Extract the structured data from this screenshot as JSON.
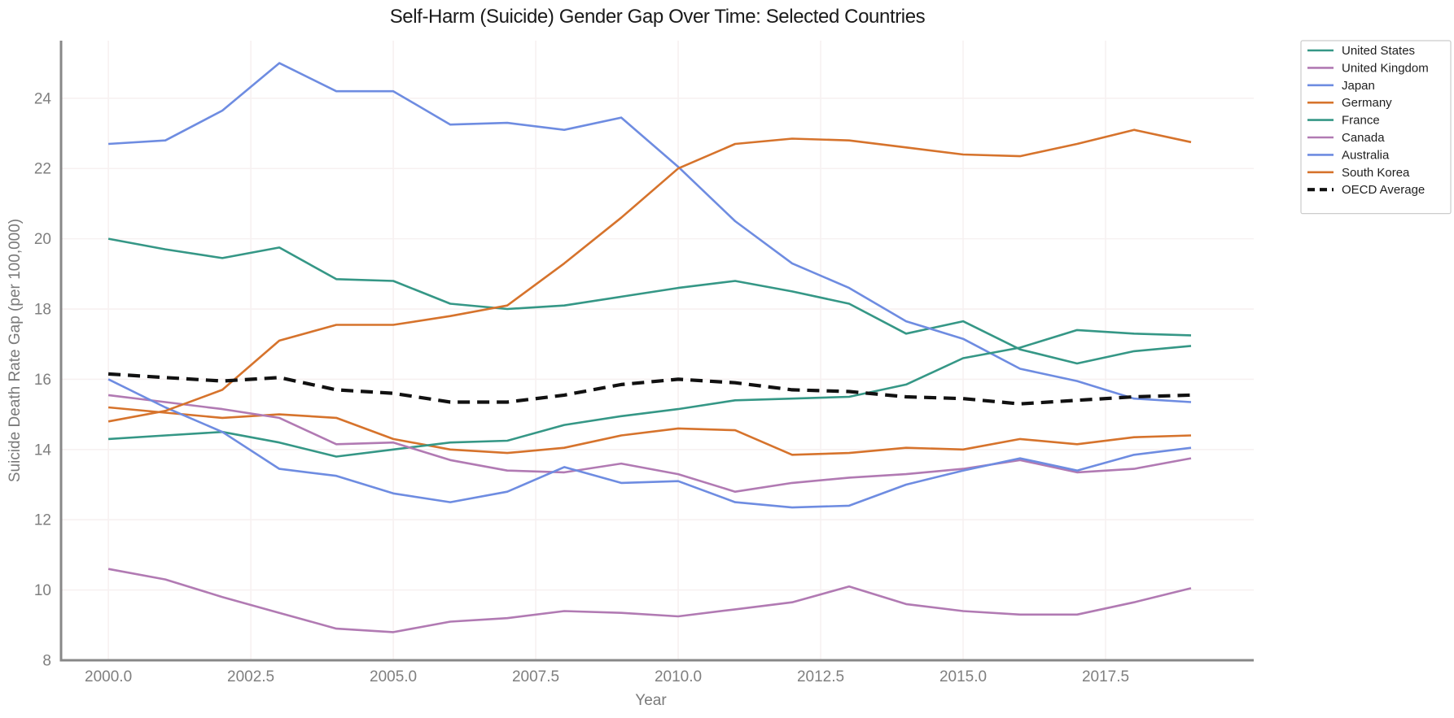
{
  "title": "Self-Harm (Suicide) Gender Gap Over Time: Selected Countries",
  "chart_data": {
    "type": "line",
    "title": "Self-Harm (Suicide) Gender Gap Over Time: Selected Countries",
    "xlabel": "Year",
    "ylabel": "Suicide Death Rate Gap (per 100,000)",
    "grid": true,
    "grid_color": "#f7f1f1",
    "spine_color": "#888888",
    "legend_position": "upper right outside",
    "xlim": [
      1999.17,
      2020.1
    ],
    "ylim": [
      8,
      25.64
    ],
    "x_ticks": [
      2000.0,
      2002.5,
      2005.0,
      2007.5,
      2010.0,
      2012.5,
      2015.0,
      2017.5
    ],
    "x_tick_labels": [
      "2000.0",
      "2002.5",
      "2005.0",
      "2007.5",
      "2010.0",
      "2012.5",
      "2015.0",
      "2017.5"
    ],
    "y_ticks": [
      8,
      10,
      12,
      14,
      16,
      18,
      20,
      22,
      24
    ],
    "y_tick_labels": [
      "8",
      "10",
      "12",
      "14",
      "16",
      "18",
      "20",
      "22",
      "24"
    ],
    "x": [
      2000,
      2001,
      2002,
      2003,
      2004,
      2005,
      2006,
      2007,
      2008,
      2009,
      2010,
      2011,
      2012,
      2013,
      2014,
      2015,
      2016,
      2017,
      2018,
      2019
    ],
    "series": [
      {
        "name": "United States",
        "color": "#359786",
        "dash": "none",
        "values": [
          20.0,
          19.7,
          19.45,
          19.75,
          18.85,
          18.8,
          18.15,
          18.0,
          18.1,
          18.35,
          18.6,
          18.8,
          18.5,
          18.15,
          17.3,
          17.65,
          16.85,
          16.45,
          16.8,
          16.95
        ]
      },
      {
        "name": "United Kingdom",
        "color": "#b17ab3",
        "dash": "none",
        "values": [
          10.6,
          10.3,
          9.8,
          9.35,
          8.9,
          8.8,
          9.1,
          9.2,
          9.4,
          9.35,
          9.25,
          9.45,
          9.65,
          10.1,
          9.6,
          9.4,
          9.3,
          9.3,
          9.65,
          10.05
        ]
      },
      {
        "name": "Japan",
        "color": "#6e8ce1",
        "dash": "none",
        "values": [
          22.7,
          22.8,
          23.65,
          25.0,
          24.2,
          24.2,
          23.25,
          23.3,
          23.1,
          23.45,
          22.05,
          20.5,
          19.3,
          18.6,
          17.65,
          17.15,
          16.3,
          15.95,
          15.45,
          15.35
        ]
      },
      {
        "name": "Germany",
        "color": "#d6732c",
        "dash": "none",
        "values": [
          15.2,
          15.05,
          14.9,
          15.0,
          14.9,
          14.3,
          14.0,
          13.9,
          14.05,
          14.4,
          14.6,
          14.55,
          13.85,
          13.9,
          14.05,
          14.0,
          14.3,
          14.15,
          14.35,
          14.4
        ]
      },
      {
        "name": "France",
        "color": "#359786",
        "dash": "none",
        "values": [
          14.3,
          14.4,
          14.5,
          14.2,
          13.8,
          14.0,
          14.2,
          14.25,
          14.7,
          14.95,
          15.15,
          15.4,
          15.45,
          15.5,
          15.85,
          16.6,
          16.9,
          17.4,
          17.3,
          17.25
        ]
      },
      {
        "name": "Canada",
        "color": "#b17ab3",
        "dash": "none",
        "values": [
          15.55,
          15.35,
          15.15,
          14.9,
          14.15,
          14.2,
          13.7,
          13.4,
          13.35,
          13.6,
          13.3,
          12.8,
          13.05,
          13.2,
          13.3,
          13.45,
          13.7,
          13.35,
          13.45,
          13.75
        ]
      },
      {
        "name": "Australia",
        "color": "#6e8ce1",
        "dash": "none",
        "values": [
          16.0,
          15.2,
          14.5,
          13.45,
          13.25,
          12.75,
          12.5,
          12.8,
          13.5,
          13.05,
          13.1,
          12.5,
          12.35,
          12.4,
          13.0,
          13.4,
          13.75,
          13.4,
          13.85,
          14.05
        ]
      },
      {
        "name": "South Korea",
        "color": "#d6732c",
        "dash": "none",
        "values": [
          14.8,
          15.1,
          15.7,
          17.1,
          17.55,
          17.55,
          17.8,
          18.1,
          19.3,
          20.6,
          22.0,
          22.7,
          22.85,
          22.8,
          22.6,
          22.4,
          22.35,
          22.7,
          23.1,
          22.75
        ]
      },
      {
        "name": "OECD Average",
        "color": "#111111",
        "dash": "dashed",
        "values": [
          16.15,
          16.05,
          15.95,
          16.05,
          15.7,
          15.6,
          15.35,
          15.35,
          15.55,
          15.85,
          16.0,
          15.9,
          15.7,
          15.65,
          15.5,
          15.45,
          15.3,
          15.4,
          15.5,
          15.55
        ]
      }
    ]
  }
}
